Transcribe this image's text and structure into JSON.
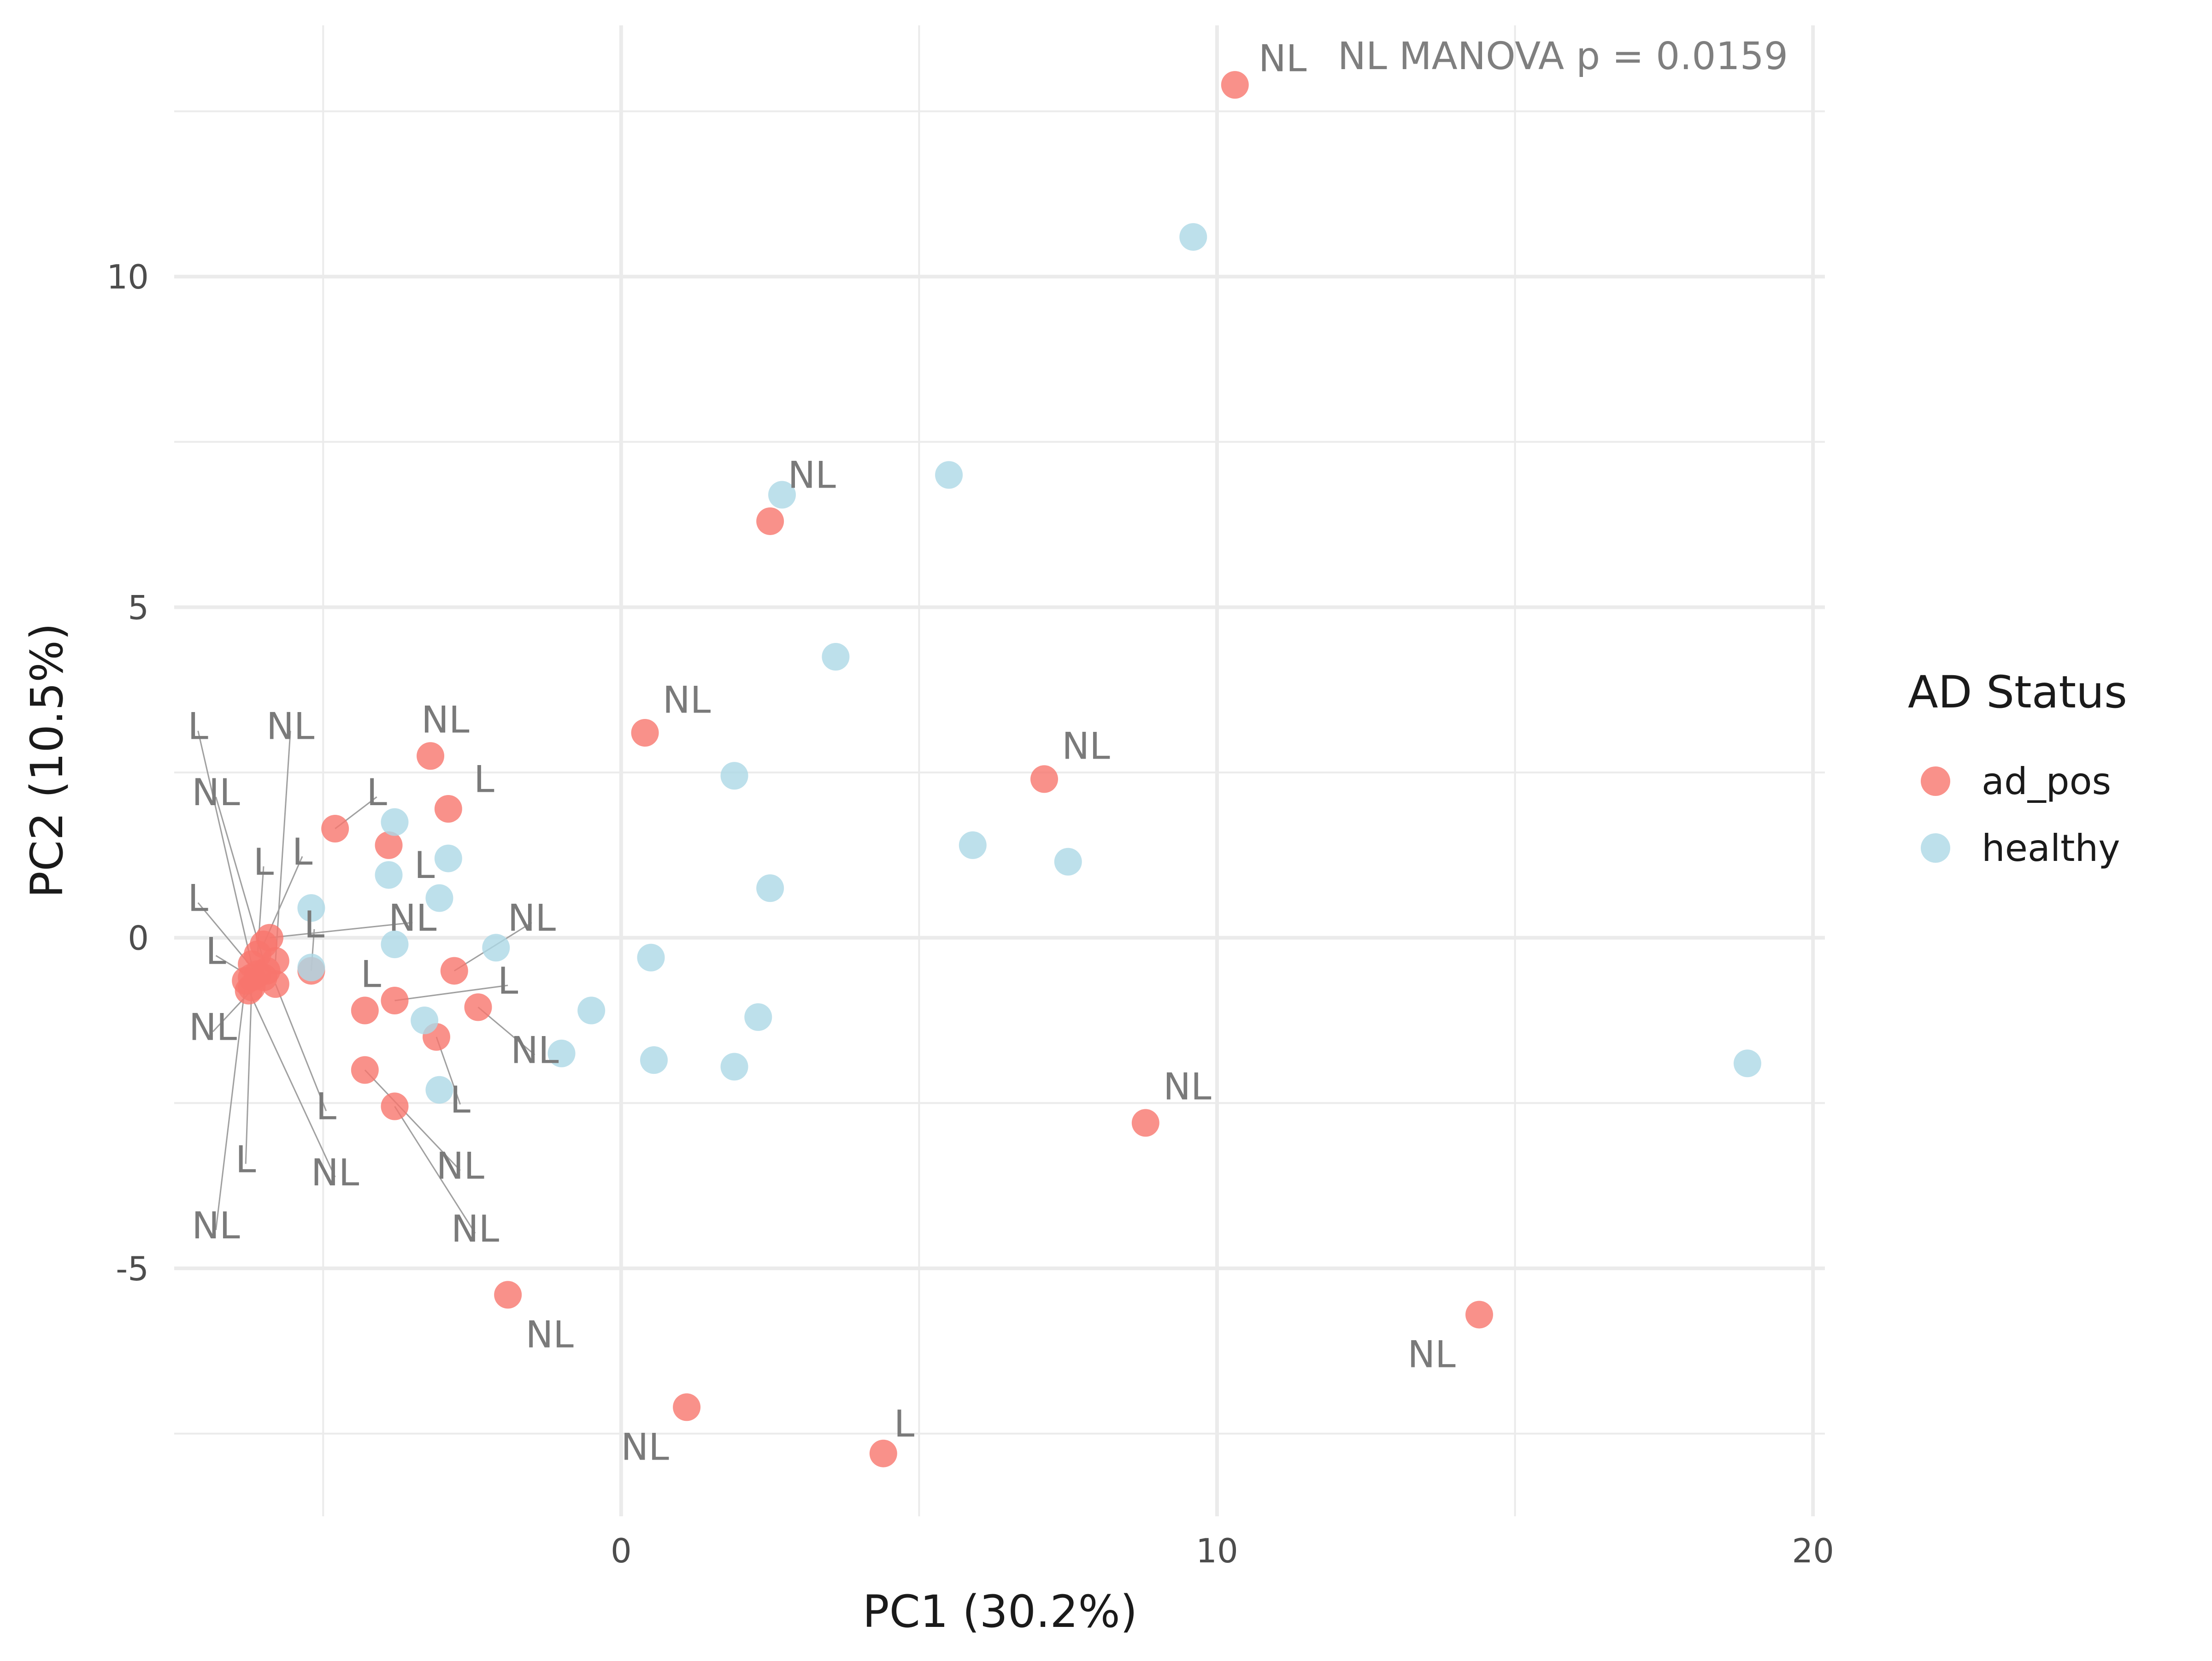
{
  "chart_data": {
    "type": "scatter",
    "xlabel": "PC1 (30.2%)",
    "ylabel": "PC2 (10.5%)",
    "xlim": [
      -7.5,
      20.2
    ],
    "ylim": [
      -8.75,
      13.8
    ],
    "x_ticks": [
      0,
      10,
      20
    ],
    "y_ticks": [
      -5,
      0,
      5,
      10
    ],
    "x_tick_labels": [
      "0",
      "10",
      "20"
    ],
    "y_tick_labels": [
      "-5",
      "0",
      "5",
      "10"
    ],
    "grid": true,
    "legend": {
      "title": "AD Status",
      "position": "right"
    },
    "annotation": "NL MANOVA p = 0.0159",
    "colors": {
      "ad_pos": "#f8766d",
      "healthy": "#add8e6"
    },
    "series": [
      {
        "name": "ad_pos",
        "points": [
          {
            "x": 10.3,
            "y": 12.9,
            "label": "NL"
          },
          {
            "x": 2.5,
            "y": 6.3,
            "label": ""
          },
          {
            "x": 0.4,
            "y": 3.1,
            "label": "NL"
          },
          {
            "x": 7.1,
            "y": 2.4,
            "label": "NL"
          },
          {
            "x": 8.8,
            "y": -2.8,
            "label": "NL"
          },
          {
            "x": 14.4,
            "y": -5.7,
            "label": "NL"
          },
          {
            "x": -1.9,
            "y": -5.4,
            "label": "NL"
          },
          {
            "x": 1.1,
            "y": -7.1,
            "label": "NL"
          },
          {
            "x": 4.4,
            "y": -7.8,
            "label": "L"
          },
          {
            "x": -3.2,
            "y": 2.75,
            "label": "NL"
          },
          {
            "x": -2.9,
            "y": 1.95,
            "label": "L"
          },
          {
            "x": -4.8,
            "y": 1.65,
            "label": "L"
          },
          {
            "x": -3.9,
            "y": 1.4,
            "label": "L"
          },
          {
            "x": -2.8,
            "y": -0.5,
            "label": "NL"
          },
          {
            "x": -2.4,
            "y": -1.05,
            "label": "NL"
          },
          {
            "x": -3.8,
            "y": -0.95,
            "label": "L"
          },
          {
            "x": -4.3,
            "y": -1.1,
            "label": "L"
          },
          {
            "x": -3.1,
            "y": -1.5,
            "label": "L"
          },
          {
            "x": -4.3,
            "y": -2.0,
            "label": "NL"
          },
          {
            "x": -3.8,
            "y": -2.55,
            "label": "NL"
          },
          {
            "x": -5.2,
            "y": -0.5,
            "label": "L"
          },
          {
            "x": -5.9,
            "y": 0.0,
            "label": "NL"
          },
          {
            "x": -6.0,
            "y": -0.1,
            "label": "L"
          },
          {
            "x": -6.1,
            "y": -0.25,
            "label": "L"
          },
          {
            "x": -5.8,
            "y": -0.35,
            "label": "NL"
          },
          {
            "x": -6.2,
            "y": -0.4,
            "label": "L"
          },
          {
            "x": -5.95,
            "y": -0.5,
            "label": "NL"
          },
          {
            "x": -6.1,
            "y": -0.55,
            "label": "L"
          },
          {
            "x": -6.0,
            "y": -0.6,
            "label": "NL"
          },
          {
            "x": -6.2,
            "y": -0.6,
            "label": "L"
          },
          {
            "x": -6.3,
            "y": -0.65,
            "label": "NL"
          },
          {
            "x": -5.8,
            "y": -0.7,
            "label": "L"
          },
          {
            "x": -6.2,
            "y": -0.75,
            "label": "L"
          },
          {
            "x": -6.25,
            "y": -0.8,
            "label": "NL"
          }
        ]
      },
      {
        "name": "healthy",
        "points": [
          {
            "x": 9.6,
            "y": 10.6,
            "label": ""
          },
          {
            "x": 2.7,
            "y": 6.7,
            "label": "NL"
          },
          {
            "x": 5.5,
            "y": 7.0,
            "label": ""
          },
          {
            "x": 3.6,
            "y": 4.25,
            "label": ""
          },
          {
            "x": 1.9,
            "y": 2.45,
            "label": ""
          },
          {
            "x": 5.9,
            "y": 1.4,
            "label": ""
          },
          {
            "x": 7.5,
            "y": 1.15,
            "label": ""
          },
          {
            "x": 2.5,
            "y": 0.75,
            "label": ""
          },
          {
            "x": 0.5,
            "y": -0.3,
            "label": ""
          },
          {
            "x": 2.3,
            "y": -1.2,
            "label": ""
          },
          {
            "x": -0.5,
            "y": -1.1,
            "label": ""
          },
          {
            "x": 0.55,
            "y": -1.85,
            "label": ""
          },
          {
            "x": 1.9,
            "y": -1.95,
            "label": ""
          },
          {
            "x": -1.0,
            "y": -1.75,
            "label": ""
          },
          {
            "x": 18.9,
            "y": -1.9,
            "label": ""
          },
          {
            "x": -2.1,
            "y": -0.15,
            "label": ""
          },
          {
            "x": -3.8,
            "y": 1.75,
            "label": ""
          },
          {
            "x": -2.9,
            "y": 1.2,
            "label": ""
          },
          {
            "x": -3.9,
            "y": 0.95,
            "label": ""
          },
          {
            "x": -3.05,
            "y": 0.6,
            "label": ""
          },
          {
            "x": -5.2,
            "y": 0.45,
            "label": ""
          },
          {
            "x": -3.8,
            "y": -0.1,
            "label": ""
          },
          {
            "x": -5.2,
            "y": -0.45,
            "label": ""
          },
          {
            "x": -3.3,
            "y": -1.25,
            "label": ""
          },
          {
            "x": -3.05,
            "y": -2.3,
            "label": ""
          }
        ]
      }
    ],
    "label_placements": [
      {
        "series": 0,
        "point": 0,
        "lx": 11.1,
        "ly": 13.3,
        "leader": false
      },
      {
        "series": 0,
        "point": 2,
        "lx": 1.1,
        "ly": 3.6,
        "leader": false
      },
      {
        "series": 0,
        "point": 3,
        "lx": 7.8,
        "ly": 2.9,
        "leader": false
      },
      {
        "series": 0,
        "point": 4,
        "lx": 9.5,
        "ly": -2.25,
        "leader": false
      },
      {
        "series": 0,
        "point": 5,
        "lx": 13.6,
        "ly": -6.3,
        "leader": false
      },
      {
        "series": 0,
        "point": 6,
        "lx": -1.2,
        "ly": -6.0,
        "leader": false
      },
      {
        "series": 0,
        "point": 7,
        "lx": 0.4,
        "ly": -7.7,
        "leader": false
      },
      {
        "series": 0,
        "point": 8,
        "lx": 4.75,
        "ly": -7.35,
        "leader": false
      },
      {
        "series": 0,
        "point": 9,
        "lx": -2.95,
        "ly": 3.3,
        "leader": false
      },
      {
        "series": 0,
        "point": 10,
        "lx": -2.3,
        "ly": 2.4,
        "leader": false
      },
      {
        "series": 0,
        "point": 11,
        "lx": -4.1,
        "ly": 2.2,
        "leader": true
      },
      {
        "series": 0,
        "point": 12,
        "lx": -3.3,
        "ly": 1.1,
        "leader": false
      },
      {
        "series": 0,
        "point": 13,
        "lx": -1.5,
        "ly": 0.3,
        "leader": true
      },
      {
        "series": 0,
        "point": 14,
        "lx": -1.45,
        "ly": -1.7,
        "leader": true
      },
      {
        "series": 0,
        "point": 15,
        "lx": -1.9,
        "ly": -0.65,
        "leader": true
      },
      {
        "series": 0,
        "point": 16,
        "lx": -4.2,
        "ly": -0.55,
        "leader": false
      },
      {
        "series": 0,
        "point": 17,
        "lx": -2.7,
        "ly": -2.45,
        "leader": true
      },
      {
        "series": 0,
        "point": 18,
        "lx": -2.7,
        "ly": -3.45,
        "leader": true
      },
      {
        "series": 0,
        "point": 19,
        "lx": -2.45,
        "ly": -4.4,
        "leader": true
      },
      {
        "series": 0,
        "point": 20,
        "lx": -5.15,
        "ly": 0.2,
        "leader": true
      },
      {
        "series": 0,
        "point": 21,
        "lx": -3.5,
        "ly": 0.3,
        "leader": true
      },
      {
        "series": 0,
        "point": 22,
        "lx": -5.35,
        "ly": 1.3,
        "leader": true
      },
      {
        "series": 0,
        "point": 23,
        "lx": -6.0,
        "ly": 1.15,
        "leader": true
      },
      {
        "series": 0,
        "point": 24,
        "lx": -5.55,
        "ly": 3.2,
        "leader": true
      },
      {
        "series": 0,
        "point": 25,
        "lx": -7.1,
        "ly": 3.2,
        "leader": true
      },
      {
        "series": 0,
        "point": 26,
        "lx": -6.8,
        "ly": 2.2,
        "leader": true
      },
      {
        "series": 0,
        "point": 27,
        "lx": -7.1,
        "ly": 0.6,
        "leader": true
      },
      {
        "series": 0,
        "point": 28,
        "lx": -6.85,
        "ly": -1.35,
        "leader": true
      },
      {
        "series": 0,
        "point": 29,
        "lx": -6.8,
        "ly": -0.2,
        "leader": true
      },
      {
        "series": 0,
        "point": 30,
        "lx": -6.8,
        "ly": -4.35,
        "leader": true
      },
      {
        "series": 0,
        "point": 31,
        "lx": -4.95,
        "ly": -2.55,
        "leader": true
      },
      {
        "series": 0,
        "point": 32,
        "lx": -6.3,
        "ly": -3.35,
        "leader": true
      },
      {
        "series": 0,
        "point": 33,
        "lx": -4.8,
        "ly": -3.55,
        "leader": true
      },
      {
        "series": 1,
        "point": 1,
        "lx": 3.2,
        "ly": 7.0,
        "leader": false
      }
    ]
  }
}
